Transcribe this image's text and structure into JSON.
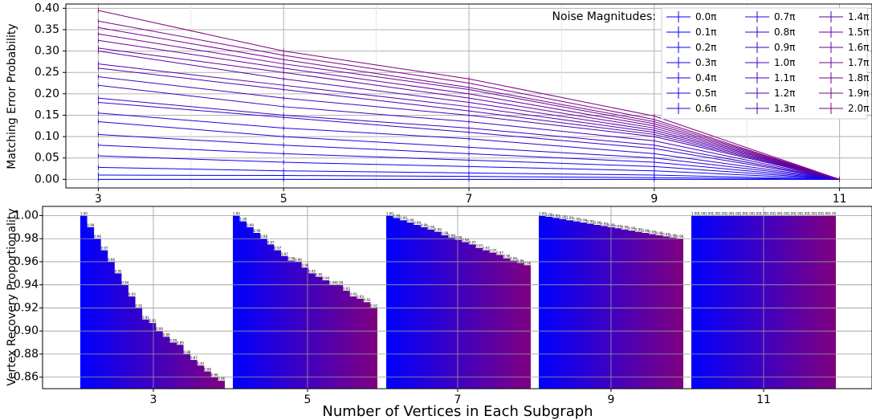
{
  "chart_data": [
    {
      "type": "line",
      "ylabel": "Matching Error Probability",
      "x": [
        3,
        5,
        7,
        9,
        11
      ],
      "xlim": [
        2.65,
        11.35
      ],
      "ylim": [
        -0.02,
        0.41
      ],
      "yticks": [
        0.0,
        0.05,
        0.1,
        0.15,
        0.2,
        0.25,
        0.3,
        0.35,
        0.4
      ],
      "ytick_labels": [
        "0.00",
        "0.05",
        "0.10",
        "0.15",
        "0.20",
        "0.25",
        "0.30",
        "0.35",
        "0.40"
      ],
      "xtick_labels": [
        "3",
        "5",
        "7",
        "9",
        "11"
      ],
      "grid": true,
      "legend": {
        "title": "Noise Magnitudes:",
        "placement": "top-right",
        "columns": 3,
        "entries": [
          "0.0π",
          "0.1π",
          "0.2π",
          "0.3π",
          "0.4π",
          "0.5π",
          "0.6π",
          "0.7π",
          "0.8π",
          "0.9π",
          "1.0π",
          "1.1π",
          "1.2π",
          "1.3π",
          "1.4π",
          "1.5π",
          "1.6π",
          "1.7π",
          "1.8π",
          "1.9π",
          "2.0π"
        ]
      },
      "color_start": "#0000ff",
      "color_end": "#800080",
      "series": [
        {
          "name": "0.0π",
          "values": [
            0.0,
            0.0,
            0.0,
            0.0,
            0.0
          ]
        },
        {
          "name": "0.1π",
          "values": [
            0.01,
            0.009,
            0.007,
            0.004,
            0.0
          ]
        },
        {
          "name": "0.2π",
          "values": [
            0.028,
            0.02,
            0.015,
            0.01,
            0.0
          ]
        },
        {
          "name": "0.3π",
          "values": [
            0.055,
            0.04,
            0.03,
            0.02,
            0.0
          ]
        },
        {
          "name": "0.4π",
          "values": [
            0.08,
            0.06,
            0.045,
            0.03,
            0.0
          ]
        },
        {
          "name": "0.5π",
          "values": [
            0.105,
            0.08,
            0.06,
            0.04,
            0.0
          ]
        },
        {
          "name": "0.6π",
          "values": [
            0.135,
            0.1,
            0.075,
            0.05,
            0.0
          ]
        },
        {
          "name": "0.7π",
          "values": [
            0.155,
            0.12,
            0.095,
            0.06,
            0.0
          ]
        },
        {
          "name": "0.8π",
          "values": [
            0.18,
            0.145,
            0.11,
            0.072,
            0.0
          ]
        },
        {
          "name": "0.9π",
          "values": [
            0.19,
            0.15,
            0.12,
            0.08,
            0.0
          ]
        },
        {
          "name": "1.0π",
          "values": [
            0.22,
            0.17,
            0.135,
            0.09,
            0.0
          ]
        },
        {
          "name": "1.1π",
          "values": [
            0.24,
            0.19,
            0.15,
            0.1,
            0.0
          ]
        },
        {
          "name": "1.2π",
          "values": [
            0.26,
            0.21,
            0.16,
            0.105,
            0.0
          ]
        },
        {
          "name": "1.3π",
          "values": [
            0.27,
            0.22,
            0.17,
            0.11,
            0.0
          ]
        },
        {
          "name": "1.4π",
          "values": [
            0.3,
            0.235,
            0.18,
            0.115,
            0.0
          ]
        },
        {
          "name": "1.5π",
          "values": [
            0.307,
            0.25,
            0.19,
            0.12,
            0.0
          ]
        },
        {
          "name": "1.6π",
          "values": [
            0.325,
            0.26,
            0.2,
            0.125,
            0.0
          ]
        },
        {
          "name": "1.7π",
          "values": [
            0.34,
            0.27,
            0.21,
            0.13,
            0.0
          ]
        },
        {
          "name": "1.8π",
          "values": [
            0.355,
            0.28,
            0.215,
            0.135,
            0.0
          ]
        },
        {
          "name": "1.9π",
          "values": [
            0.37,
            0.29,
            0.225,
            0.14,
            0.0
          ]
        },
        {
          "name": "2.0π",
          "values": [
            0.395,
            0.3,
            0.235,
            0.148,
            0.0
          ]
        }
      ]
    },
    {
      "type": "bar",
      "ylabel": "Vertex Recovery Proportionality",
      "xlabel": "Number of Vertices in Each Subgraph",
      "ylim": [
        0.85,
        1.008
      ],
      "yticks": [
        0.86,
        0.88,
        0.9,
        0.92,
        0.94,
        0.96,
        0.98,
        1.0
      ],
      "ytick_labels": [
        "0.86",
        "0.88",
        "0.90",
        "0.92",
        "0.94",
        "0.96",
        "0.98",
        "1.00"
      ],
      "grid": true,
      "color_start": "#0000ff",
      "color_end": "#800080",
      "groups": [
        {
          "label": "3",
          "values": [
            1.0,
            0.99,
            0.98,
            0.97,
            0.96,
            0.95,
            0.94,
            0.93,
            0.92,
            0.91,
            0.907,
            0.9,
            0.895,
            0.89,
            0.888,
            0.88,
            0.875,
            0.87,
            0.865,
            0.86,
            0.857
          ],
          "value_labels": [
            "1.00",
            "0.99",
            "0.98",
            "0.97",
            "0.96",
            "0.95",
            "0.94",
            "0.93",
            "0.92",
            "0.91",
            "0.91",
            "0.90",
            "0.89",
            "0.89",
            "0.89",
            "0.88",
            "0.87",
            "0.87",
            "0.86",
            "0.86",
            "0.86"
          ]
        },
        {
          "label": "5",
          "values": [
            1.0,
            0.995,
            0.99,
            0.985,
            0.98,
            0.975,
            0.97,
            0.965,
            0.961,
            0.96,
            0.955,
            0.95,
            0.947,
            0.944,
            0.94,
            0.94,
            0.935,
            0.93,
            0.928,
            0.925,
            0.92
          ],
          "value_labels": [
            "1.00",
            "1.00",
            "0.99",
            "0.99",
            "0.98",
            "0.97",
            "0.97",
            "0.97",
            "0.96",
            "0.96",
            "0.96",
            "0.95",
            "0.95",
            "0.94",
            "0.94",
            "0.94",
            "0.93",
            "0.93",
            "0.93",
            "0.92",
            "0.92"
          ]
        },
        {
          "label": "7",
          "values": [
            1.0,
            0.998,
            0.996,
            0.994,
            0.992,
            0.99,
            0.988,
            0.986,
            0.983,
            0.981,
            0.979,
            0.977,
            0.975,
            0.972,
            0.97,
            0.968,
            0.966,
            0.963,
            0.961,
            0.959,
            0.957
          ],
          "value_labels": [
            "1.00",
            "1.00",
            "1.00",
            "0.99",
            "0.99",
            "0.99",
            "0.99",
            "0.99",
            "0.98",
            "0.98",
            "0.98",
            "0.98",
            "0.97",
            "0.97",
            "0.97",
            "0.97",
            "0.97",
            "0.96",
            "0.96",
            "0.96",
            "0.96"
          ]
        },
        {
          "label": "9",
          "values": [
            1.0,
            0.999,
            0.998,
            0.997,
            0.996,
            0.995,
            0.994,
            0.993,
            0.992,
            0.991,
            0.99,
            0.989,
            0.988,
            0.987,
            0.986,
            0.985,
            0.984,
            0.983,
            0.982,
            0.981,
            0.98
          ],
          "value_labels": [
            "1.00",
            "1.00",
            "1.00",
            "1.00",
            "1.00",
            "1.00",
            "0.99",
            "0.99",
            "0.99",
            "0.99",
            "0.99",
            "0.99",
            "0.99",
            "0.99",
            "0.99",
            "0.99",
            "0.98",
            "0.98",
            "0.98",
            "0.98",
            "0.98"
          ]
        },
        {
          "label": "11",
          "values": [
            1.0,
            1.0,
            1.0,
            1.0,
            1.0,
            1.0,
            1.0,
            1.0,
            1.0,
            1.0,
            1.0,
            1.0,
            1.0,
            1.0,
            1.0,
            1.0,
            1.0,
            1.0,
            1.0,
            1.0,
            1.0
          ],
          "value_labels": [
            "1.00",
            "1.00",
            "1.00",
            "1.00",
            "1.00",
            "1.00",
            "1.00",
            "1.00",
            "1.00",
            "1.00",
            "1.00",
            "1.00",
            "1.00",
            "1.00",
            "1.00",
            "1.00",
            "1.00",
            "1.00",
            "1.00",
            "1.00",
            "1.00"
          ]
        }
      ]
    }
  ]
}
